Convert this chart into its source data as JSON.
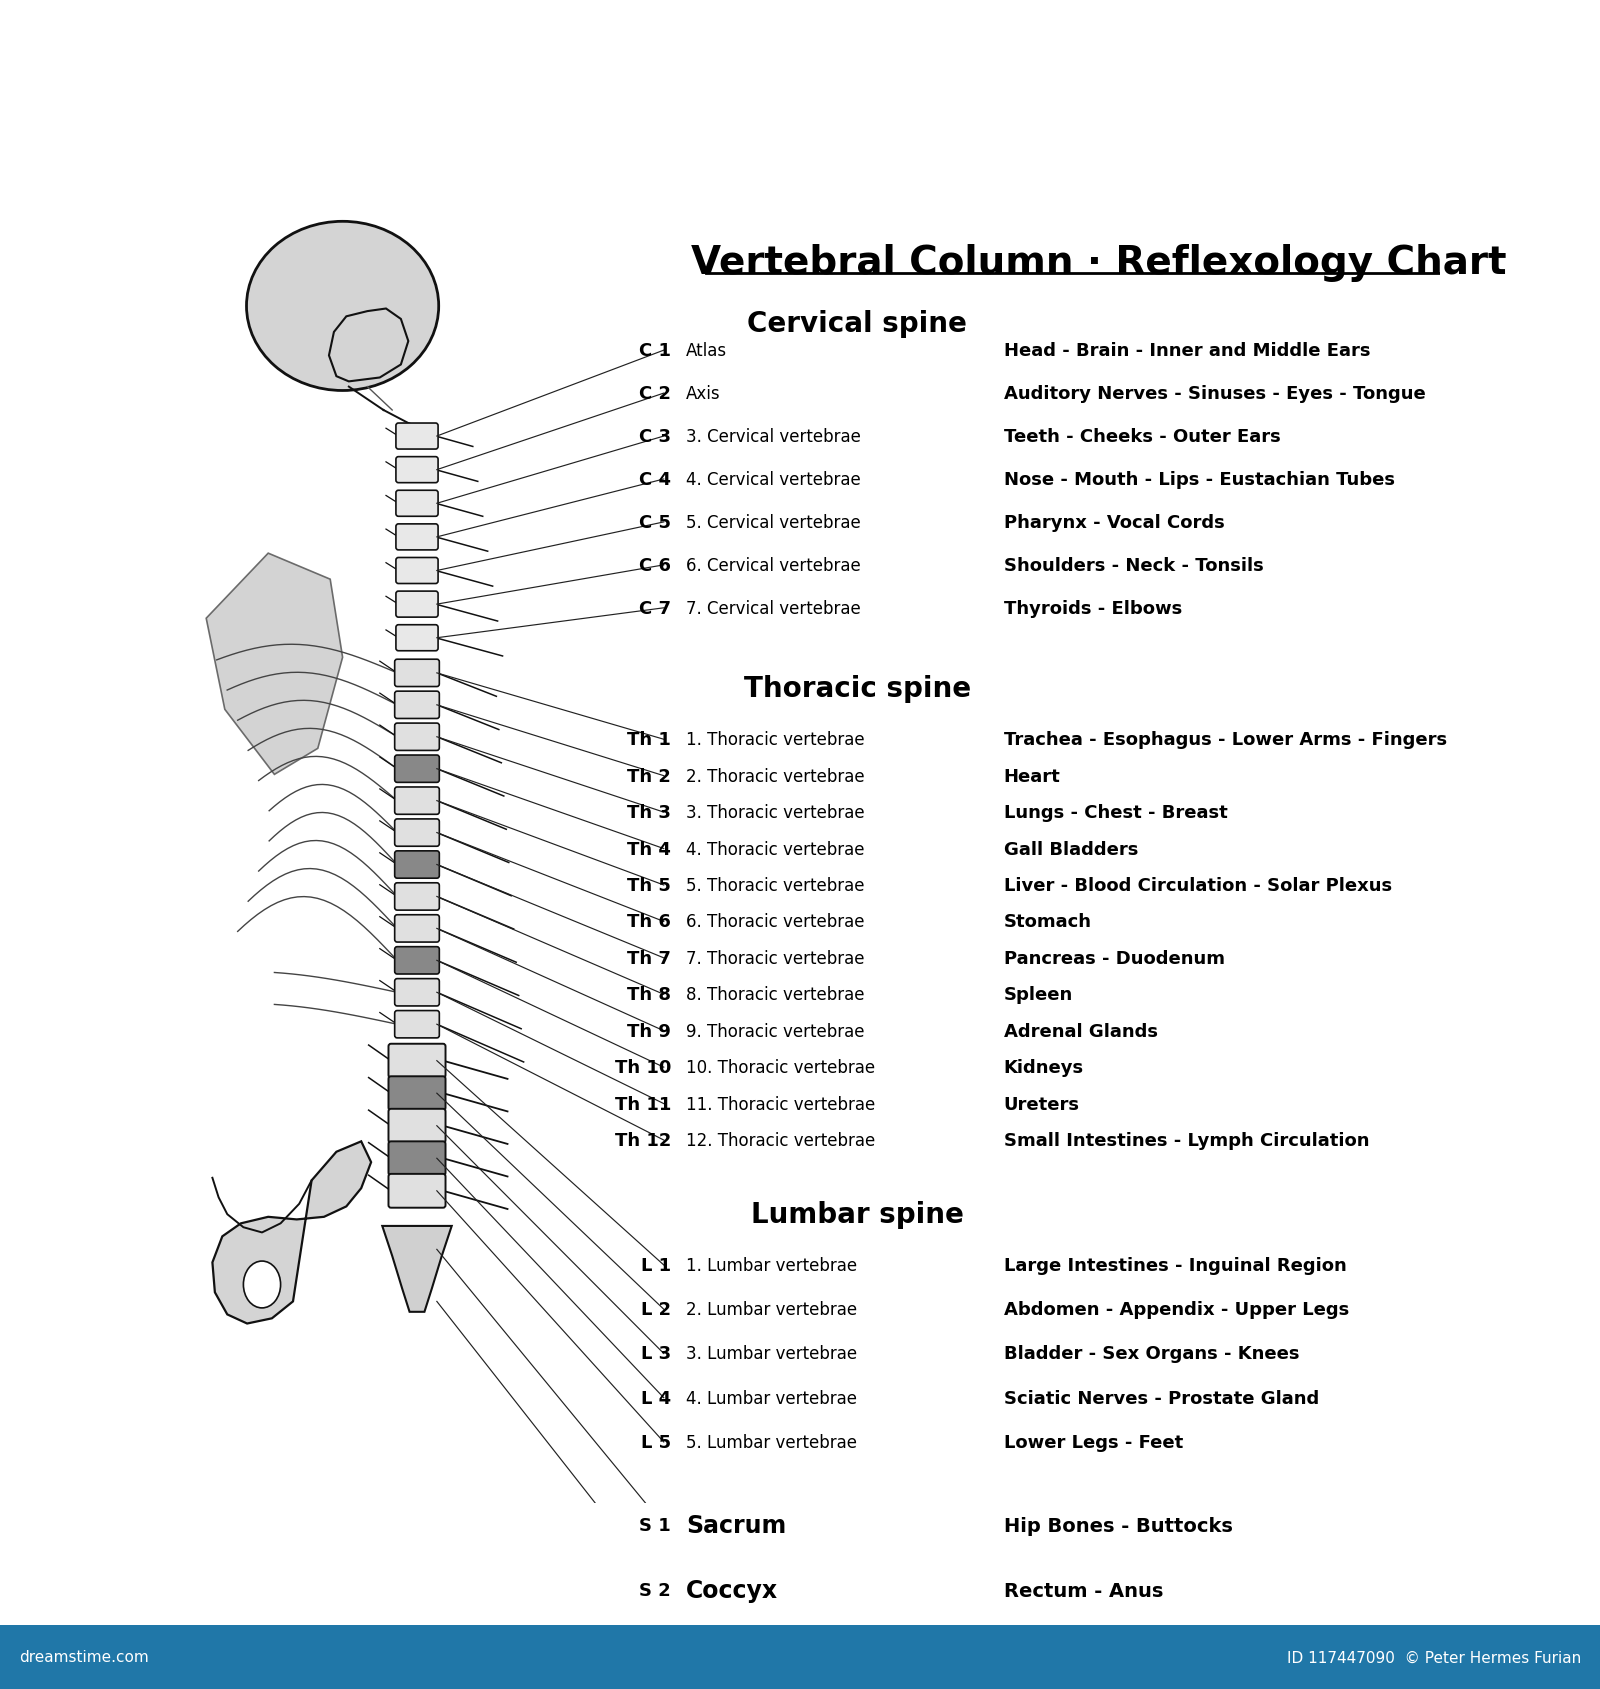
{
  "title": "Vertebral Column · Reflexology Chart",
  "background_color": "#ffffff",
  "footer_color": "#2077a8",
  "footer_text_left": "dreamstime.com",
  "footer_text_right": "ID 117447090  © Peter Hermes Furian",
  "sections": [
    {
      "name": "Cervical spine",
      "rows": [
        {
          "code": "C 1",
          "vertebra": "Atlas",
          "organ": "Head - Brain - Inner and Middle Ears"
        },
        {
          "code": "C 2",
          "vertebra": "Axis",
          "organ": "Auditory Nerves - Sinuses - Eyes - Tongue"
        },
        {
          "code": "C 3",
          "vertebra": "3. Cervical vertebrae",
          "organ": "Teeth - Cheeks - Outer Ears"
        },
        {
          "code": "C 4",
          "vertebra": "4. Cervical vertebrae",
          "organ": "Nose - Mouth - Lips - Eustachian Tubes"
        },
        {
          "code": "C 5",
          "vertebra": "5. Cervical vertebrae",
          "organ": "Pharynx - Vocal Cords"
        },
        {
          "code": "C 6",
          "vertebra": "6. Cervical vertebrae",
          "organ": "Shoulders - Neck - Tonsils"
        },
        {
          "code": "C 7",
          "vertebra": "7. Cervical vertebrae",
          "organ": "Thyroids - Elbows"
        }
      ]
    },
    {
      "name": "Thoracic spine",
      "rows": [
        {
          "code": "Th 1",
          "vertebra": "1. Thoracic vertebrae",
          "organ": "Trachea - Esophagus - Lower Arms - Fingers"
        },
        {
          "code": "Th 2",
          "vertebra": "2. Thoracic vertebrae",
          "organ": "Heart"
        },
        {
          "code": "Th 3",
          "vertebra": "3. Thoracic vertebrae",
          "organ": "Lungs - Chest - Breast"
        },
        {
          "code": "Th 4",
          "vertebra": "4. Thoracic vertebrae",
          "organ": "Gall Bladders"
        },
        {
          "code": "Th 5",
          "vertebra": "5. Thoracic vertebrae",
          "organ": "Liver - Blood Circulation - Solar Plexus"
        },
        {
          "code": "Th 6",
          "vertebra": "6. Thoracic vertebrae",
          "organ": "Stomach"
        },
        {
          "code": "Th 7",
          "vertebra": "7. Thoracic vertebrae",
          "organ": "Pancreas - Duodenum"
        },
        {
          "code": "Th 8",
          "vertebra": "8. Thoracic vertebrae",
          "organ": "Spleen"
        },
        {
          "code": "Th 9",
          "vertebra": "9. Thoracic vertebrae",
          "organ": "Adrenal Glands"
        },
        {
          "code": "Th 10",
          "vertebra": "10. Thoracic vertebrae",
          "organ": "Kidneys"
        },
        {
          "code": "Th 11",
          "vertebra": "11. Thoracic vertebrae",
          "organ": "Ureters"
        },
        {
          "code": "Th 12",
          "vertebra": "12. Thoracic vertebrae",
          "organ": "Small Intestines - Lymph Circulation"
        }
      ]
    },
    {
      "name": "Lumbar spine",
      "rows": [
        {
          "code": "L 1",
          "vertebra": "1. Lumbar vertebrae",
          "organ": "Large Intestines - Inguinal Region"
        },
        {
          "code": "L 2",
          "vertebra": "2. Lumbar vertebrae",
          "organ": "Abdomen - Appendix - Upper Legs"
        },
        {
          "code": "L 3",
          "vertebra": "3. Lumbar vertebrae",
          "organ": "Bladder - Sex Organs - Knees"
        },
        {
          "code": "L 4",
          "vertebra": "4. Lumbar vertebrae",
          "organ": "Sciatic Nerves - Prostate Gland"
        },
        {
          "code": "L 5",
          "vertebra": "5. Lumbar vertebrae",
          "organ": "Lower Legs - Feet"
        }
      ]
    },
    {
      "name": "",
      "rows": [
        {
          "code": "S 1",
          "vertebra": "Sacrum",
          "organ": "Hip Bones - Buttocks"
        },
        {
          "code": "S 2",
          "vertebra": "Coccyx",
          "organ": "Rectum - Anus"
        }
      ]
    }
  ],
  "text_color": "#000000",
  "title_fontsize": 28,
  "section_fontsize": 20,
  "row_fontsize": 13
}
